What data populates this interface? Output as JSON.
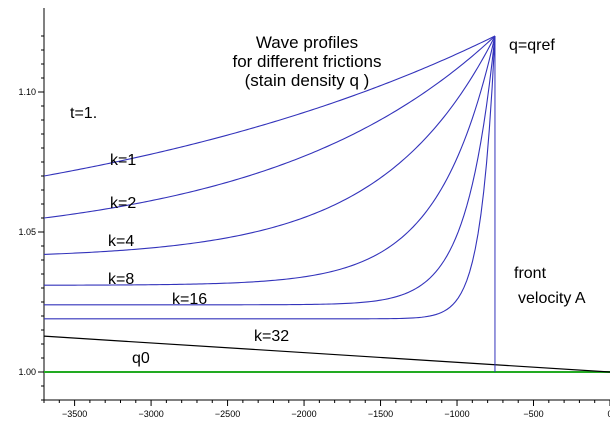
{
  "chart_data": {
    "type": "line",
    "title_lines": [
      "Wave profiles",
      "for different frictions",
      "(stain density q )"
    ],
    "xlabel": "",
    "ylabel": "",
    "xlim": [
      -3700,
      0
    ],
    "ylim": [
      0.99,
      1.13
    ],
    "x_ticks": [
      -3500,
      -3000,
      -2500,
      -2000,
      -1500,
      -1000,
      -500,
      0
    ],
    "x_tick_labels": [
      "−3500",
      "−3000",
      "−2500",
      "−2000",
      "−1500",
      "−1000",
      "−500",
      "0"
    ],
    "y_ticks": [
      1.0,
      1.05,
      1.1
    ],
    "y_tick_labels": [
      "1.00",
      "1.05",
      "1.10"
    ],
    "front_x": -752,
    "q_ref": 1.12,
    "series": [
      {
        "name": "k=1",
        "k": 1,
        "start": 1.07,
        "color": "#3333bb"
      },
      {
        "name": "k=2",
        "k": 2,
        "start": 1.055,
        "color": "#3333bb"
      },
      {
        "name": "k=4",
        "k": 4,
        "start": 1.042,
        "color": "#3333bb"
      },
      {
        "name": "k=8",
        "k": 8,
        "start": 1.031,
        "color": "#3333bb"
      },
      {
        "name": "k=16",
        "k": 16,
        "start": 1.024,
        "color": "#3333bb"
      },
      {
        "name": "k=32",
        "k": 32,
        "start": 1.019,
        "color": "#3333bb"
      }
    ],
    "q0_line": {
      "name": "q0",
      "x": [
        -3700,
        0
      ],
      "y": [
        1.0128,
        1.0
      ],
      "color": "#000000"
    },
    "baseline": {
      "y": 1.0,
      "color": "#22aa22"
    },
    "annotations": {
      "time": "t=1.",
      "q_ref": "q=qref",
      "front_line1": "front",
      "front_line2": "velocity A",
      "q0": "q0",
      "k_labels": [
        "k=1",
        "k=2",
        "k=4",
        "k=8",
        "k=16",
        "k=32"
      ]
    },
    "grid": false,
    "legend": "none"
  }
}
